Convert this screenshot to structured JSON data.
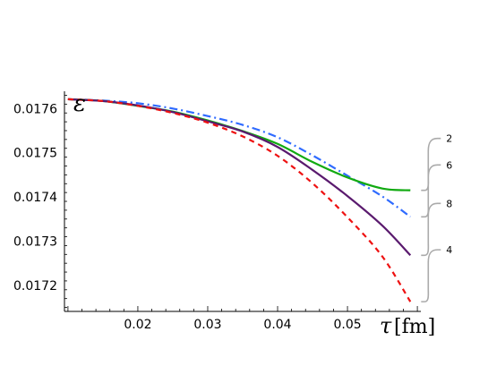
{
  "chart_data": {
    "type": "line",
    "ylabel": "ε",
    "xlabel_symbol": "τ",
    "xlabel_unit": "[fm]",
    "xlim": [
      0.0095,
      0.0605
    ],
    "ylim": [
      0.017141,
      0.017635
    ],
    "x_ticks": [
      0.02,
      0.03,
      0.04,
      0.05
    ],
    "x_tick_labels": [
      "0.02",
      "0.03",
      "0.04",
      "0.05"
    ],
    "y_ticks": [
      0.0172,
      0.0173,
      0.0174,
      0.0175,
      0.0176
    ],
    "y_tick_labels": [
      "0.0172",
      "0.0173",
      "0.0174",
      "0.0175",
      "0.0176"
    ],
    "x": [
      0.01,
      0.015,
      0.02,
      0.025,
      0.03,
      0.035,
      0.04,
      0.045,
      0.05,
      0.055,
      0.059
    ],
    "series": [
      {
        "name": "6",
        "color": "#2f6bff",
        "style": "dashdot",
        "values": [
          0.017621,
          0.017618,
          0.017612,
          0.0176,
          0.017583,
          0.017563,
          0.017535,
          0.017494,
          0.017448,
          0.017401,
          0.017355
        ]
      },
      {
        "name": "2",
        "color": "#11aa11",
        "style": "solid",
        "values": [
          0.017621,
          0.017617,
          0.017606,
          0.017593,
          0.017573,
          0.017549,
          0.01752,
          0.017479,
          0.017444,
          0.017419,
          0.017415
        ]
      },
      {
        "name": "8",
        "color": "#5a1a6e",
        "style": "solid",
        "values": [
          0.017621,
          0.017617,
          0.017607,
          0.017592,
          0.017571,
          0.017548,
          0.017513,
          0.017461,
          0.017402,
          0.017335,
          0.017268
        ]
      },
      {
        "name": "4",
        "color": "#ee1111",
        "style": "dashed",
        "values": [
          0.017621,
          0.017617,
          0.017606,
          0.01759,
          0.017568,
          0.017537,
          0.017493,
          0.017431,
          0.017354,
          0.017265,
          0.017163
        ]
      }
    ]
  }
}
